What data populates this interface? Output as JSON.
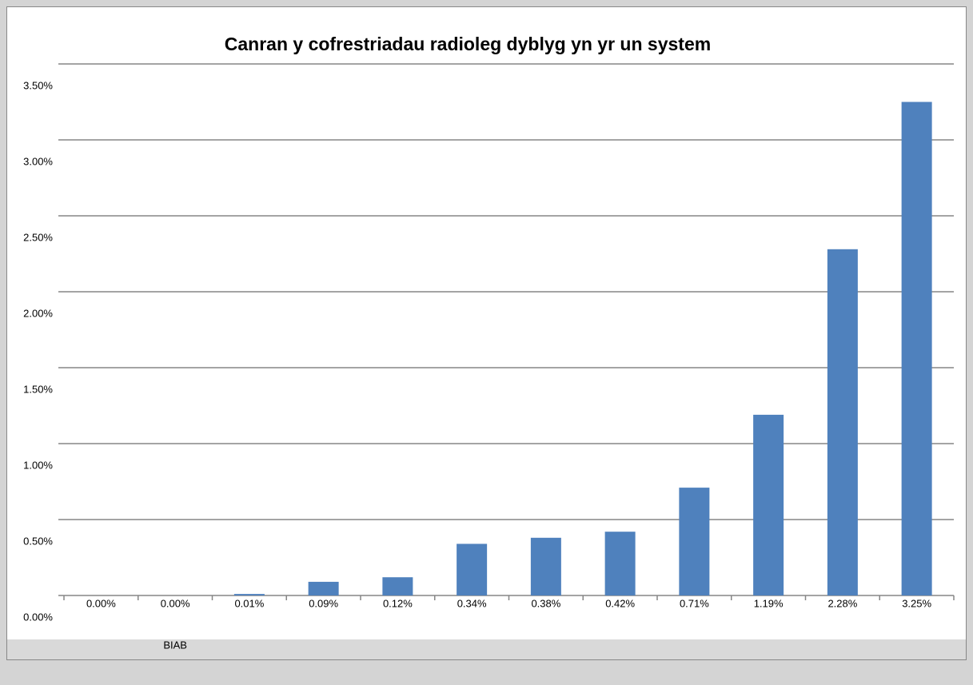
{
  "chart_data": {
    "type": "bar",
    "title": "Canran y cofrestriadau radioleg dyblyg yn yr un system",
    "categories": [
      null,
      "BIAB",
      null,
      null,
      null,
      null,
      null,
      null,
      null,
      null,
      null,
      null
    ],
    "values": [
      0.0,
      0.0,
      0.01,
      0.09,
      0.12,
      0.34,
      0.38,
      0.42,
      0.71,
      1.19,
      2.28,
      3.25
    ],
    "value_labels": [
      "0.00%",
      "0.00%",
      "0.01%",
      "0.09%",
      "0.12%",
      "0.34%",
      "0.38%",
      "0.42%",
      "0.71%",
      "1.19%",
      "2.28%",
      "3.25%"
    ],
    "color": "#4f81bd",
    "ylim": [
      0,
      3.5
    ],
    "yticks": [
      {
        "value": 0,
        "label": "0.00%"
      },
      {
        "value": 0.5,
        "label": "0.50%"
      },
      {
        "value": 1,
        "label": "1.00%"
      },
      {
        "value": 1.5,
        "label": "1.50%"
      },
      {
        "value": 2,
        "label": "2.00%"
      },
      {
        "value": 2.5,
        "label": "2.50%"
      },
      {
        "value": 3,
        "label": "3.00%"
      },
      {
        "value": 3.5,
        "label": "3.50%"
      }
    ],
    "grid": true
  }
}
